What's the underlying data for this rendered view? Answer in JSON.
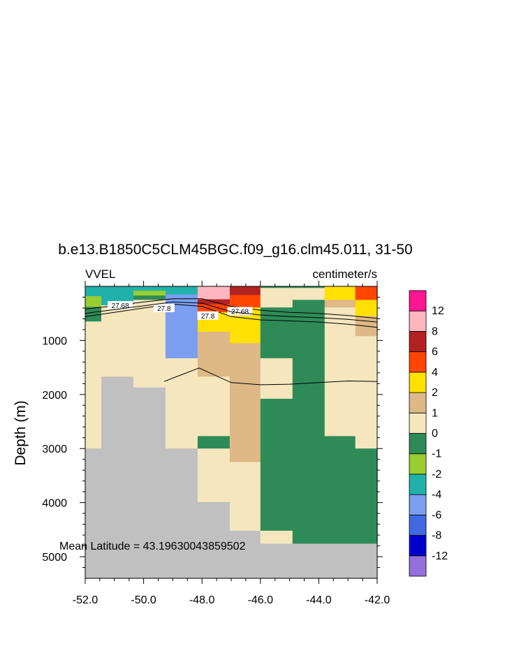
{
  "chart_data": {
    "type": "heatmap",
    "title": "b.e13.B1850C5CLM45BGC.f09_g16.clm45.011, 31-50",
    "left_string": "VVEL",
    "right_string": "centimeter/s",
    "ylabel": "Depth (m)",
    "xlabel": "",
    "xlim": [
      -52,
      -42
    ],
    "ylim": [
      5400,
      0
    ],
    "x_ticks": [
      -52,
      -50,
      -48,
      -46,
      -44,
      -42
    ],
    "x_tick_labels": [
      "-52.0",
      "-50.0",
      "-48.0",
      "-46.0",
      "-44.0",
      "-42.0"
    ],
    "y_ticks": [
      1000,
      2000,
      3000,
      4000,
      5000
    ],
    "y_tick_labels": [
      "1000",
      "2000",
      "3000",
      "4000",
      "5000"
    ],
    "annotation": "Mean Latitude = 43.19630043859502",
    "colorbar": {
      "levels": [
        "-12",
        "-8",
        "-6",
        "-4",
        "-2",
        "-1",
        "0",
        "1",
        "2",
        "4",
        "6",
        "8",
        "12"
      ],
      "colors": [
        "#9370DB",
        "#0000CD",
        "#4169E1",
        "#7B9EF0",
        "#20B2AA",
        "#9ACD32",
        "#2E8B57",
        "#F5E6BE",
        "#DEB887",
        "#FFE000",
        "#FF4500",
        "#B22222",
        "#FFB6C1",
        "#FF1493"
      ]
    },
    "missing_color": "#C0C0C0",
    "columns": [
      {
        "x0": -52.0,
        "x1": -51.45,
        "segments": [
          {
            "d0": 0,
            "d1": 180,
            "c": 4
          },
          {
            "d0": 180,
            "d1": 380,
            "c": 5
          },
          {
            "d0": 380,
            "d1": 650,
            "c": 6
          },
          {
            "d0": 650,
            "d1": 3000,
            "c": 7
          },
          {
            "d0": 3000,
            "d1": 5400,
            "c": -1
          }
        ]
      },
      {
        "x0": -51.45,
        "x1": -50.35,
        "segments": [
          {
            "d0": 0,
            "d1": 350,
            "c": 4
          },
          {
            "d0": 350,
            "d1": 1670,
            "c": 7
          },
          {
            "d0": 1670,
            "d1": 5400,
            "c": -1
          }
        ]
      },
      {
        "x0": -50.35,
        "x1": -49.25,
        "segments": [
          {
            "d0": 0,
            "d1": 80,
            "c": 4
          },
          {
            "d0": 80,
            "d1": 170,
            "c": 5
          },
          {
            "d0": 170,
            "d1": 250,
            "c": 6
          },
          {
            "d0": 250,
            "d1": 1870,
            "c": 7
          },
          {
            "d0": 1870,
            "d1": 5400,
            "c": -1
          }
        ]
      },
      {
        "x0": -49.25,
        "x1": -48.15,
        "segments": [
          {
            "d0": 0,
            "d1": 150,
            "c": 4
          },
          {
            "d0": 150,
            "d1": 1330,
            "c": 3
          },
          {
            "d0": 1330,
            "d1": 3000,
            "c": 7
          },
          {
            "d0": 3000,
            "d1": 5400,
            "c": -1
          }
        ]
      },
      {
        "x0": -48.15,
        "x1": -47.05,
        "segments": [
          {
            "d0": 0,
            "d1": 240,
            "c": 12
          },
          {
            "d0": 240,
            "d1": 330,
            "c": 11
          },
          {
            "d0": 330,
            "d1": 480,
            "c": 10
          },
          {
            "d0": 480,
            "d1": 840,
            "c": 9
          },
          {
            "d0": 840,
            "d1": 1670,
            "c": 8
          },
          {
            "d0": 1670,
            "d1": 2770,
            "c": 7
          },
          {
            "d0": 2770,
            "d1": 3000,
            "c": 6
          },
          {
            "d0": 3000,
            "d1": 3990,
            "c": 7
          },
          {
            "d0": 3990,
            "d1": 5400,
            "c": -1
          }
        ]
      },
      {
        "x0": -47.05,
        "x1": -46.0,
        "segments": [
          {
            "d0": 0,
            "d1": 160,
            "c": 11
          },
          {
            "d0": 160,
            "d1": 390,
            "c": 10
          },
          {
            "d0": 390,
            "d1": 1050,
            "c": 9
          },
          {
            "d0": 1050,
            "d1": 3250,
            "c": 8
          },
          {
            "d0": 3250,
            "d1": 4520,
            "c": 7
          },
          {
            "d0": 4520,
            "d1": 5400,
            "c": -1
          }
        ]
      },
      {
        "x0": -46.0,
        "x1": -44.9,
        "segments": [
          {
            "d0": 0,
            "d1": 30,
            "c": 6
          },
          {
            "d0": 30,
            "d1": 390,
            "c": 7
          },
          {
            "d0": 390,
            "d1": 1330,
            "c": 6
          },
          {
            "d0": 1330,
            "d1": 2080,
            "c": 7
          },
          {
            "d0": 2080,
            "d1": 4520,
            "c": 6
          },
          {
            "d0": 4520,
            "d1": 4760,
            "c": 7
          },
          {
            "d0": 4760,
            "d1": 5400,
            "c": -1
          }
        ]
      },
      {
        "x0": -44.9,
        "x1": -43.8,
        "segments": [
          {
            "d0": 0,
            "d1": 30,
            "c": 6
          },
          {
            "d0": 30,
            "d1": 250,
            "c": 7
          },
          {
            "d0": 250,
            "d1": 4760,
            "c": 6
          },
          {
            "d0": 4760,
            "d1": 5400,
            "c": -1
          }
        ]
      },
      {
        "x0": -43.8,
        "x1": -42.75,
        "segments": [
          {
            "d0": 0,
            "d1": 250,
            "c": 9
          },
          {
            "d0": 250,
            "d1": 390,
            "c": 8
          },
          {
            "d0": 390,
            "d1": 2770,
            "c": 7
          },
          {
            "d0": 2770,
            "d1": 4760,
            "c": 6
          },
          {
            "d0": 4760,
            "d1": 5400,
            "c": -1
          }
        ]
      },
      {
        "x0": -42.75,
        "x1": -42.0,
        "segments": [
          {
            "d0": 0,
            "d1": 250,
            "c": 10
          },
          {
            "d0": 250,
            "d1": 550,
            "c": 9
          },
          {
            "d0": 550,
            "d1": 920,
            "c": 8
          },
          {
            "d0": 920,
            "d1": 3000,
            "c": 7
          },
          {
            "d0": 3000,
            "d1": 4760,
            "c": 6
          },
          {
            "d0": 4760,
            "d1": 5400,
            "c": -1
          }
        ]
      }
    ],
    "contours": [
      {
        "level": "27.68",
        "points": [
          [
            -52.0,
            420
          ],
          [
            -51.0,
            360
          ],
          [
            -50.0,
            290
          ],
          [
            -49.0,
            230
          ],
          [
            -48.0,
            230
          ],
          [
            -47.0,
            370
          ],
          [
            -46.0,
            440
          ],
          [
            -45.0,
            480
          ],
          [
            -44.0,
            500
          ],
          [
            -43.0,
            540
          ],
          [
            -42.0,
            590
          ]
        ],
        "labels": [
          {
            "x": -50.8,
            "d": 350
          },
          {
            "x": -46.7,
            "d": 460
          }
        ]
      },
      {
        "level": "27.8",
        "points": [
          [
            -52.0,
            560
          ],
          [
            -51.0,
            480
          ],
          [
            -50.0,
            400
          ],
          [
            -49.0,
            330
          ],
          [
            -48.0,
            370
          ],
          [
            -47.0,
            560
          ],
          [
            -46.0,
            620
          ],
          [
            -45.0,
            640
          ],
          [
            -44.0,
            660
          ],
          [
            -43.0,
            700
          ],
          [
            -42.0,
            760
          ]
        ],
        "labels": [
          {
            "x": -49.3,
            "d": 400
          },
          {
            "x": -47.8,
            "d": 540
          }
        ]
      },
      {
        "level": "",
        "points": [
          [
            -52.0,
            500
          ],
          [
            -51.0,
            430
          ],
          [
            -50.0,
            360
          ],
          [
            -49.0,
            290
          ],
          [
            -48.0,
            310
          ],
          [
            -47.0,
            470
          ],
          [
            -46.0,
            530
          ],
          [
            -45.0,
            560
          ],
          [
            -44.0,
            580
          ],
          [
            -43.0,
            610
          ],
          [
            -42.0,
            660
          ]
        ],
        "labels": []
      },
      {
        "level": "",
        "points": [
          [
            -49.3,
            1760
          ],
          [
            -48.1,
            1510
          ],
          [
            -47.0,
            1780
          ],
          [
            -46.0,
            1820
          ],
          [
            -45.0,
            1810
          ],
          [
            -44.0,
            1780
          ],
          [
            -43.0,
            1750
          ],
          [
            -42.0,
            1760
          ]
        ],
        "labels": []
      }
    ]
  }
}
